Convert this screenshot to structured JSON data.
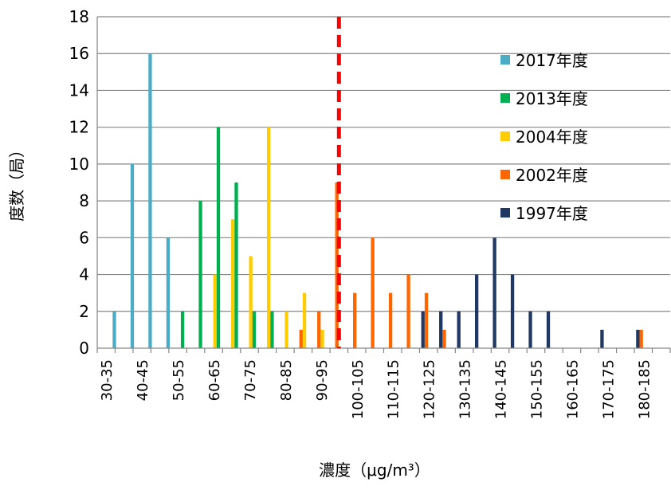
{
  "chart_data": {
    "type": "bar",
    "xlabel": "濃度（μg/m³）",
    "ylabel": "度数（局）",
    "ylim": [
      0,
      18
    ],
    "yticks": [
      "0",
      "2",
      "4",
      "6",
      "8",
      "10",
      "12",
      "14",
      "16",
      "18"
    ],
    "grid": true,
    "legend_position": "top-right",
    "categories": [
      "30-35",
      "35-40",
      "40-45",
      "45-50",
      "50-55",
      "55-60",
      "60-65",
      "65-70",
      "70-75",
      "75-80",
      "80-85",
      "85-90",
      "90-95",
      "95-100",
      "100-105",
      "105-110",
      "110-115",
      "115-120",
      "120-125",
      "125-130",
      "130-135",
      "135-140",
      "140-145",
      "145-150",
      "150-155",
      "155-160",
      "160-165",
      "165-170",
      "170-175",
      "175-180",
      "180-185",
      "185-190"
    ],
    "tick_labels": [
      "30-35",
      "40-45",
      "50-55",
      "60-65",
      "70-75",
      "80-85",
      "90-95",
      "100-105",
      "110-115",
      "120-125",
      "130-135",
      "140-145",
      "150-155",
      "160-165",
      "170-175",
      "180-185"
    ],
    "reference_line": {
      "x_bin_index": 13.5,
      "color": "#FF0000",
      "style": "dashed"
    },
    "series": [
      {
        "name": "1997年度",
        "color": "#1F3864",
        "values": [
          0,
          0,
          0,
          0,
          0,
          0,
          0,
          0,
          0,
          0,
          0,
          0,
          0,
          0,
          0,
          0,
          0,
          0,
          2,
          2,
          2,
          4,
          6,
          4,
          2,
          2,
          0,
          0,
          1,
          0,
          1,
          0
        ]
      },
      {
        "name": "2002年度",
        "color": "#FF6600",
        "values": [
          0,
          0,
          0,
          0,
          0,
          0,
          0,
          0,
          0,
          0,
          0,
          1,
          2,
          9,
          3,
          6,
          3,
          4,
          3,
          1,
          0,
          0,
          0,
          0,
          0,
          0,
          0,
          0,
          0,
          0,
          1,
          0
        ]
      },
      {
        "name": "2004年度",
        "color": "#FFCC00",
        "values": [
          0,
          0,
          0,
          0,
          0,
          0,
          4,
          7,
          5,
          12,
          2,
          3,
          1,
          0,
          0,
          0,
          0,
          0,
          0,
          0,
          0,
          0,
          0,
          0,
          0,
          0,
          0,
          0,
          0,
          0,
          0,
          0
        ]
      },
      {
        "name": "2013年度",
        "color": "#00B050",
        "values": [
          0,
          0,
          0,
          0,
          2,
          8,
          12,
          9,
          2,
          2,
          0,
          0,
          0,
          0,
          0,
          0,
          0,
          0,
          0,
          0,
          0,
          0,
          0,
          0,
          0,
          0,
          0,
          0,
          0,
          0,
          0,
          0
        ]
      },
      {
        "name": "2017年度",
        "color": "#4BACC6",
        "values": [
          2,
          10,
          16,
          6,
          0,
          0,
          0,
          0,
          0,
          0,
          0,
          0,
          0,
          0,
          0,
          0,
          0,
          0,
          0,
          0,
          0,
          0,
          0,
          0,
          0,
          0,
          0,
          0,
          0,
          0,
          0,
          0
        ]
      }
    ]
  }
}
